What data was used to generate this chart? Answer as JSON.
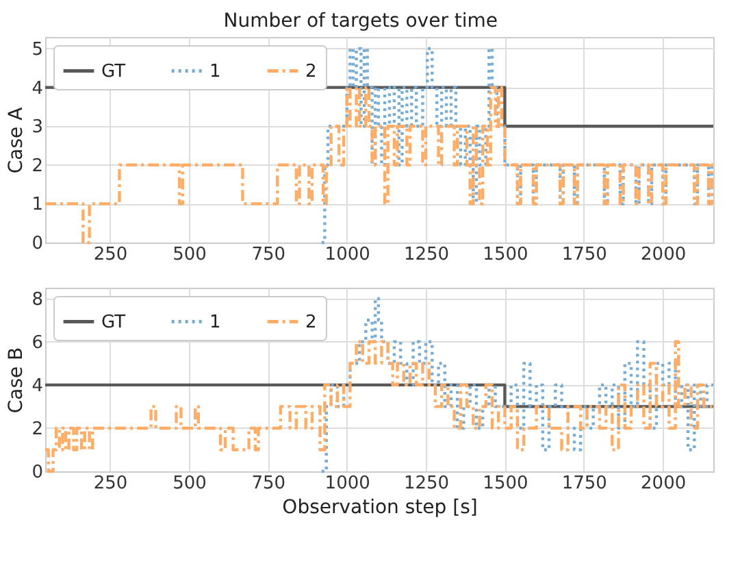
{
  "chart_data": [
    {
      "type": "step",
      "title": "Number of targets over time",
      "ylabel": "Case A",
      "xlim": [
        45,
        2160
      ],
      "xticks": [
        250,
        500,
        750,
        1000,
        1250,
        1500,
        1750,
        2000
      ],
      "ylim": [
        0,
        5.3
      ],
      "yticks": [
        0,
        1,
        2,
        3,
        4,
        5
      ],
      "grid": true,
      "legend": "top left",
      "series": [
        {
          "name": "GT",
          "color": "#595959",
          "line_style": "solid",
          "x": [
            45,
            1500,
            2160
          ],
          "values": [
            4,
            3,
            3
          ]
        },
        {
          "name": "1",
          "color": "#79acd3",
          "line_style": "dotted",
          "x": [
            920,
            930,
            940,
            1000,
            1010,
            1020,
            1030,
            1045,
            1055,
            1065,
            1080,
            1090,
            1100,
            1110,
            1120,
            1135,
            1150,
            1165,
            1175,
            1190,
            1205,
            1220,
            1240,
            1255,
            1270,
            1285,
            1300,
            1315,
            1330,
            1345,
            1360,
            1375,
            1390,
            1400,
            1410,
            1420,
            1440,
            1450,
            1460,
            1475,
            1500,
            1540,
            1550,
            1590,
            1600,
            1675,
            1685,
            1720,
            1730,
            1815,
            1825,
            1865,
            1875,
            1915,
            1925,
            1955,
            1965,
            2000,
            2010,
            2100,
            2110,
            2145,
            2155,
            2160
          ],
          "values": [
            0,
            2,
            3,
            4,
            5,
            4,
            5,
            3,
            5,
            4,
            2,
            4,
            3,
            2,
            4,
            3,
            4,
            2,
            4,
            3,
            4,
            3,
            4,
            5,
            4,
            3,
            4,
            3,
            4,
            3,
            2,
            3,
            2,
            1,
            3,
            2,
            3,
            5,
            4,
            3,
            2,
            1,
            2,
            1,
            2,
            1,
            2,
            1,
            2,
            1,
            2,
            1,
            2,
            1,
            2,
            1,
            2,
            1,
            2,
            1,
            2,
            1,
            2,
            2
          ]
        },
        {
          "name": "2",
          "color": "#ffad66",
          "line_style": "dashed",
          "x": [
            45,
            165,
            185,
            280,
            470,
            480,
            670,
            685,
            780,
            840,
            850,
            880,
            890,
            925,
            935,
            950,
            975,
            990,
            1000,
            1010,
            1030,
            1040,
            1060,
            1070,
            1080,
            1090,
            1120,
            1130,
            1150,
            1160,
            1190,
            1200,
            1240,
            1250,
            1290,
            1300,
            1340,
            1350,
            1380,
            1390,
            1400,
            1410,
            1420,
            1430,
            1445,
            1455,
            1470,
            1480,
            1490,
            1500,
            1540,
            1550,
            1590,
            1600,
            1675,
            1685,
            1720,
            1730,
            1815,
            1825,
            1865,
            1875,
            1915,
            1925,
            1955,
            1965,
            2000,
            2010,
            2100,
            2110,
            2145,
            2155,
            2160
          ],
          "values": [
            1,
            0,
            1,
            2,
            1,
            2,
            1,
            1,
            2,
            1,
            2,
            1,
            2,
            1,
            2,
            3,
            2,
            3,
            4,
            3,
            4,
            3,
            4,
            3,
            2,
            3,
            1,
            3,
            2,
            3,
            2,
            3,
            2,
            3,
            2,
            3,
            2,
            3,
            2,
            1,
            3,
            2,
            1,
            3,
            2,
            4,
            3,
            4,
            3,
            2,
            1,
            2,
            1,
            2,
            1,
            2,
            1,
            2,
            1,
            2,
            1,
            2,
            1,
            2,
            1,
            2,
            1,
            2,
            1,
            2,
            1,
            2,
            2
          ]
        }
      ]
    },
    {
      "type": "step",
      "ylabel": "Case B",
      "xlabel": "Observation step [s]",
      "xlim": [
        45,
        2160
      ],
      "xticks": [
        250,
        500,
        750,
        1000,
        1250,
        1500,
        1750,
        2000
      ],
      "ylim": [
        0,
        8.5
      ],
      "yticks": [
        0,
        2,
        4,
        6,
        8
      ],
      "grid": true,
      "legend": "top left",
      "series": [
        {
          "name": "GT",
          "color": "#595959",
          "line_style": "solid",
          "x": [
            45,
            1500,
            2160
          ],
          "values": [
            4,
            3,
            3
          ]
        },
        {
          "name": "1",
          "color": "#79acd3",
          "line_style": "dotted",
          "x": [
            920,
            935,
            950,
            970,
            990,
            1010,
            1040,
            1060,
            1080,
            1090,
            1100,
            1110,
            1130,
            1150,
            1170,
            1190,
            1210,
            1230,
            1250,
            1270,
            1290,
            1310,
            1330,
            1350,
            1370,
            1390,
            1410,
            1430,
            1450,
            1470,
            1500,
            1520,
            1540,
            1560,
            1580,
            1600,
            1620,
            1640,
            1660,
            1680,
            1700,
            1720,
            1740,
            1760,
            1780,
            1800,
            1820,
            1840,
            1860,
            1880,
            1900,
            1920,
            1940,
            1960,
            1980,
            2000,
            2020,
            2040,
            2060,
            2080,
            2100,
            2120,
            2140,
            2160
          ],
          "values": [
            0,
            3,
            4,
            3,
            4,
            5,
            6,
            7,
            6,
            8,
            7,
            6,
            5,
            6,
            5,
            4,
            6,
            5,
            6,
            4,
            5,
            3,
            4,
            2,
            3,
            4,
            2,
            3,
            4,
            3,
            3,
            4,
            2,
            5,
            3,
            4,
            1,
            3,
            4,
            3,
            2,
            1,
            3,
            2,
            3,
            4,
            3,
            4,
            2,
            5,
            3,
            6,
            4,
            2,
            5,
            4,
            5,
            3,
            4,
            1,
            4,
            3,
            4,
            4
          ]
        },
        {
          "name": "2",
          "color": "#ffad66",
          "line_style": "dashed",
          "x": [
            45,
            55,
            70,
            80,
            90,
            100,
            110,
            120,
            135,
            145,
            160,
            170,
            185,
            195,
            380,
            395,
            460,
            475,
            520,
            530,
            600,
            615,
            640,
            690,
            710,
            720,
            790,
            820,
            840,
            870,
            890,
            915,
            930,
            950,
            970,
            990,
            1010,
            1030,
            1050,
            1070,
            1090,
            1110,
            1130,
            1145,
            1160,
            1180,
            1200,
            1220,
            1240,
            1260,
            1280,
            1300,
            1320,
            1340,
            1360,
            1380,
            1400,
            1420,
            1440,
            1460,
            1480,
            1500,
            1520,
            1540,
            1560,
            1600,
            1640,
            1680,
            1700,
            1740,
            1760,
            1800,
            1820,
            1840,
            1860,
            1880,
            1900,
            1920,
            1940,
            1960,
            1980,
            2000,
            2020,
            2040,
            2050,
            2070,
            2090,
            2110,
            2130,
            2160
          ],
          "values": [
            1,
            0,
            1,
            2,
            1,
            2,
            1,
            2,
            1,
            2,
            1,
            2,
            1,
            2,
            3,
            2,
            3,
            2,
            3,
            2,
            1,
            2,
            1,
            2,
            1,
            2,
            3,
            2,
            3,
            2,
            3,
            1,
            4,
            3,
            4,
            3,
            5,
            6,
            5,
            6,
            5,
            6,
            5,
            4,
            5,
            4,
            5,
            4,
            5,
            4,
            3,
            4,
            3,
            2,
            4,
            3,
            2,
            3,
            4,
            2,
            3,
            2,
            3,
            1,
            2,
            3,
            2,
            1,
            3,
            2,
            3,
            2,
            3,
            1,
            4,
            2,
            3,
            4,
            2,
            5,
            3,
            4,
            2,
            6,
            3,
            4,
            2,
            4,
            3,
            3
          ]
        }
      ]
    }
  ]
}
